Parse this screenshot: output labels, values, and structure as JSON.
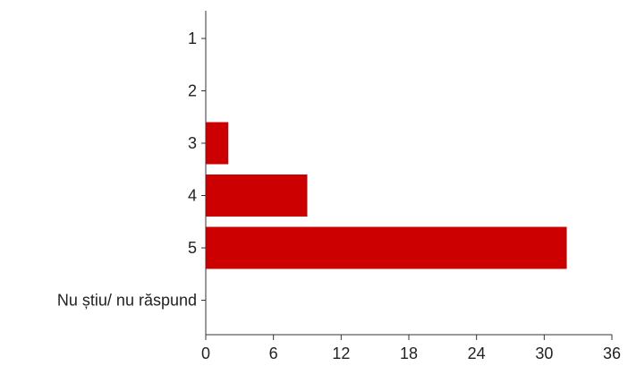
{
  "chart_data": {
    "type": "bar",
    "orientation": "horizontal",
    "categories": [
      "1",
      "2",
      "3",
      "4",
      "5",
      "Nu știu/ nu răspund"
    ],
    "values": [
      0,
      0,
      2,
      9,
      32,
      0
    ],
    "xlim": [
      0,
      36
    ],
    "xticks": [
      0,
      6,
      12,
      18,
      24,
      30,
      36
    ],
    "title": "",
    "xlabel": "",
    "ylabel": "",
    "grid": false,
    "legend": "none",
    "bar_color": "#cc0000"
  }
}
